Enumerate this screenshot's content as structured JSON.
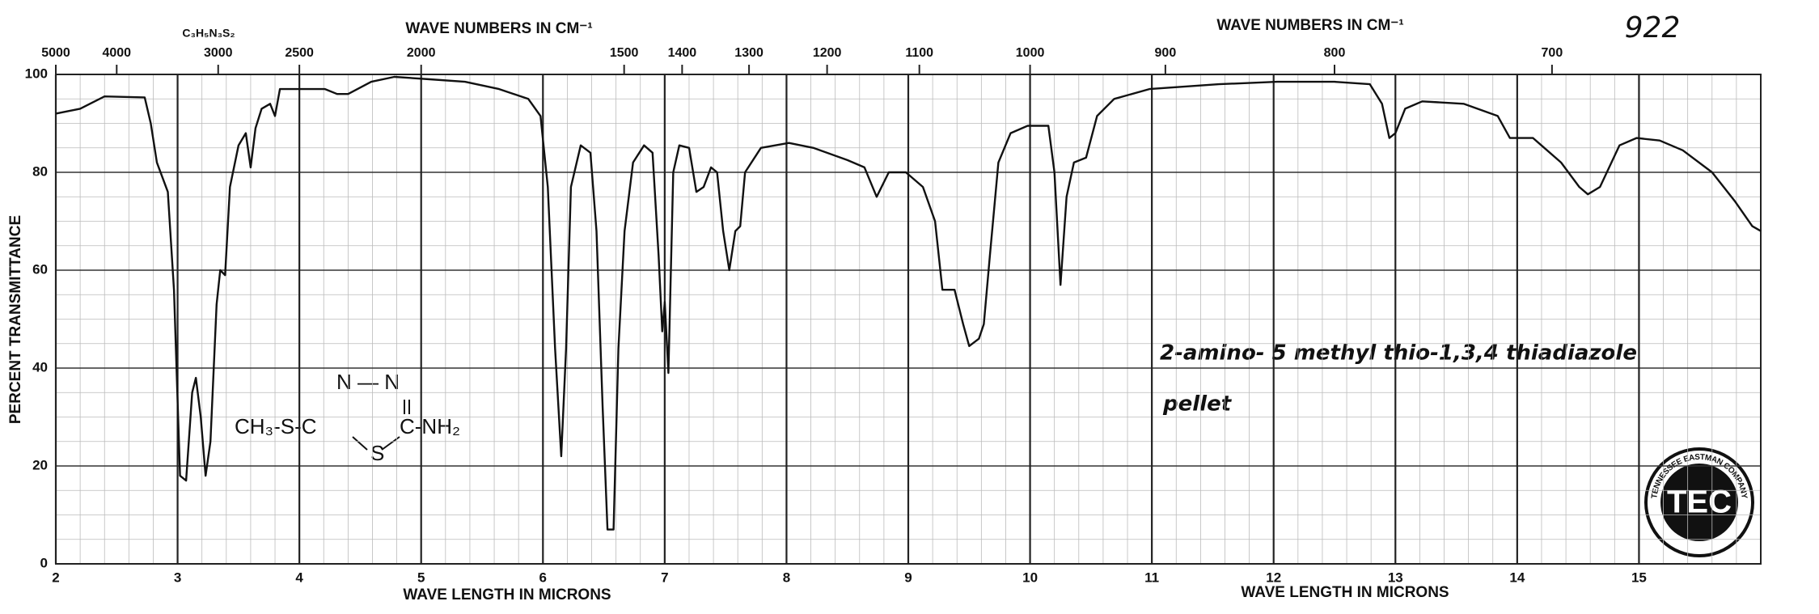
{
  "chart_data": {
    "type": "line",
    "title_top_left": "WAVE NUMBERS IN CM⁻¹",
    "title_top_right": "WAVE NUMBERS IN CM⁻¹",
    "xlabel_left": "WAVE LENGTH IN MICRONS",
    "xlabel_right": "WAVE LENGTH IN MICRONS",
    "ylabel": "PERCENT TRANSMITTANCE",
    "formula": "C₃H₅N₃S₂",
    "sample_number": "922",
    "annotation": "2-amino- 5 methyl thio-1,3,4 thiadiazole",
    "annotation_2": "pellet",
    "structure": {
      "ring_top": "N — N",
      "left": "CH₃-S-C",
      "right": "C-NH₂",
      "bottom": "S"
    },
    "logo": {
      "initials": "TEC",
      "ring_text": "TENNESSEE EASTMAN COMPANY"
    },
    "x": [
      2.0,
      2.2,
      2.4,
      2.73,
      2.78,
      2.83,
      2.92,
      2.97,
      3.02,
      3.07,
      3.12,
      3.15,
      3.19,
      3.23,
      3.27,
      3.32,
      3.35,
      3.39,
      3.43,
      3.5,
      3.56,
      3.6,
      3.64,
      3.69,
      3.76,
      3.8,
      3.84,
      3.97,
      4.21,
      4.31,
      4.4,
      4.59,
      4.78,
      5.07,
      5.36,
      5.64,
      5.88,
      5.98,
      6.04,
      6.1,
      6.15,
      6.19,
      6.23,
      6.31,
      6.39,
      6.44,
      6.49,
      6.53,
      6.58,
      6.62,
      6.67,
      6.74,
      6.83,
      6.9,
      6.95,
      6.98,
      7.0,
      7.03,
      7.07,
      7.12,
      7.2,
      7.26,
      7.32,
      7.38,
      7.43,
      7.48,
      7.53,
      7.58,
      7.62,
      7.66,
      7.79,
      8.02,
      8.22,
      8.5,
      8.64,
      8.74,
      8.84,
      8.98,
      9.12,
      9.22,
      9.28,
      9.38,
      9.45,
      9.5,
      9.58,
      9.62,
      9.67,
      9.74,
      9.84,
      9.98,
      10.15,
      10.2,
      10.25,
      10.3,
      10.36,
      10.46,
      10.55,
      10.69,
      10.98,
      11.55,
      12.03,
      12.5,
      12.79,
      12.89,
      12.95,
      13.0,
      13.08,
      13.22,
      13.56,
      13.84,
      13.94,
      14.13,
      14.36,
      14.51,
      14.58,
      14.68,
      14.84,
      14.98,
      15.17,
      15.36,
      15.6,
      15.79,
      15.93,
      16.0
    ],
    "series": [
      {
        "color": "#111111",
        "values": [
          92,
          93,
          95.5,
          95.3,
          90,
          82,
          76,
          56,
          18,
          17,
          35,
          38,
          30,
          18,
          25,
          53,
          60,
          59,
          77,
          85.5,
          88,
          81,
          89,
          93,
          94,
          91.5,
          97,
          97,
          97,
          96,
          96,
          98.5,
          99.5,
          99,
          98.5,
          97,
          95,
          91.5,
          77,
          44,
          22,
          44,
          77,
          85.5,
          84,
          68,
          32,
          7,
          7,
          44,
          68,
          82,
          85.5,
          84,
          63,
          47.5,
          53.5,
          39,
          80,
          85.5,
          85,
          76,
          77,
          81,
          80,
          68,
          60,
          68,
          69,
          80,
          85,
          86,
          85,
          82.5,
          81,
          75,
          80,
          80,
          77,
          70,
          56,
          56,
          49,
          44.5,
          46,
          49,
          63,
          82,
          88,
          89.5,
          89.5,
          80,
          57,
          75,
          82,
          83,
          91.5,
          95,
          97,
          98,
          98.5,
          98.5,
          98,
          94,
          87,
          88,
          93,
          94.5,
          94,
          91.5,
          87,
          87,
          82,
          77,
          75.5,
          77,
          85.5,
          87,
          86.5,
          84.5,
          80,
          74,
          69,
          68
        ]
      }
    ],
    "xlim": [
      2,
      16
    ],
    "ylim": [
      0,
      100
    ],
    "xticks": [
      2,
      3,
      4,
      5,
      6,
      7,
      8,
      9,
      10,
      11,
      12,
      13,
      14,
      15
    ],
    "yticks": [
      0,
      20,
      40,
      60,
      80,
      100
    ],
    "x2ticks": [
      5000,
      4000,
      3000,
      2500,
      2000,
      1500,
      1400,
      1300,
      1200,
      1100,
      1000,
      900,
      800,
      700
    ],
    "grid": true
  }
}
